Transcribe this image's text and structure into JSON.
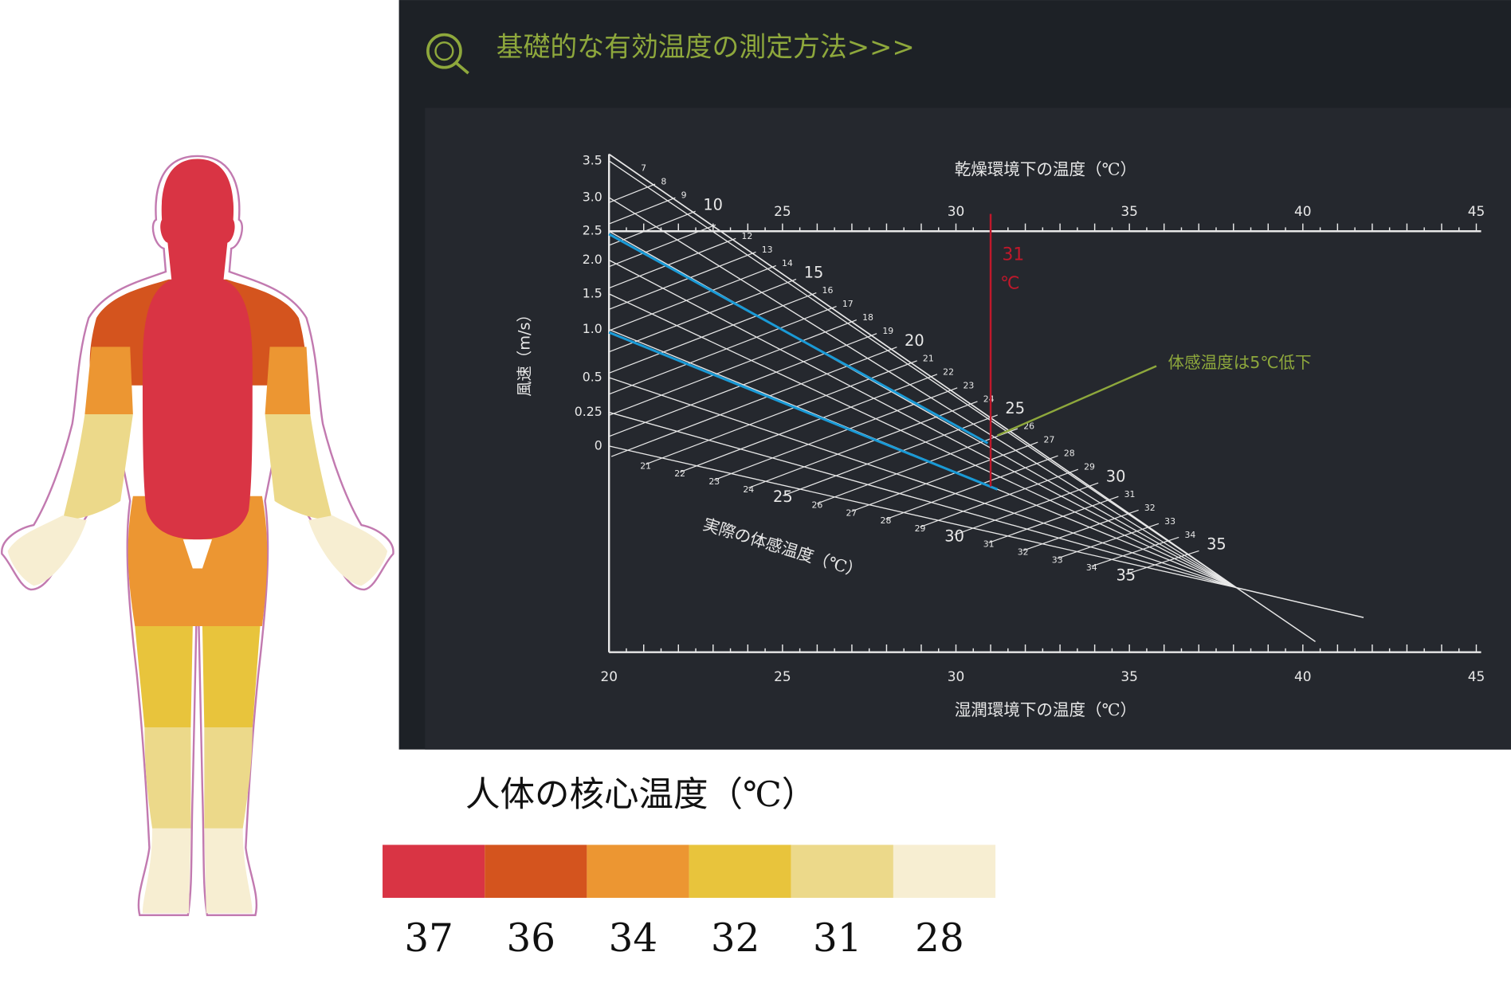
{
  "panel": {
    "title": "基礎的な有効温度の測定方法>>>",
    "top_axis_label": "乾燥環境下の温度（℃）",
    "bottom_axis_label": "湿潤環境下の温度（℃）",
    "wind_axis_label": "風速（m/s）",
    "curve_label": "実際の体感温度（℃）",
    "top_ticks": [
      25,
      30,
      35,
      40,
      45
    ],
    "bottom_ticks": [
      20,
      25,
      30,
      35,
      40,
      45
    ],
    "wind_ticks": [
      "3.5",
      "3.0",
      "2.5",
      "2.0",
      "1.5",
      "1.0",
      "0.5",
      "0.25",
      "0"
    ],
    "upper_scale": [
      7,
      8,
      9,
      10,
      12,
      13,
      14,
      15,
      16,
      17,
      18,
      19,
      20,
      21,
      22,
      23,
      24,
      25,
      26,
      27,
      28,
      29,
      30,
      31,
      32,
      33,
      34,
      35
    ],
    "lower_scale": [
      21,
      22,
      23,
      24,
      25,
      26,
      27,
      28,
      29,
      30,
      31,
      32,
      33,
      34,
      35
    ],
    "marker_value": "31",
    "marker_unit": "℃",
    "callout": "体感温度は5℃低下"
  },
  "legend": {
    "title": "人体の核心温度（℃）",
    "items": [
      {
        "label": 37,
        "color": "#d93444"
      },
      {
        "label": 36,
        "color": "#d4541e"
      },
      {
        "label": 34,
        "color": "#ec9632"
      },
      {
        "label": 32,
        "color": "#e8c43c"
      },
      {
        "label": 31,
        "color": "#ecd98a"
      },
      {
        "label": 28,
        "color": "#f7eed2"
      }
    ]
  }
}
